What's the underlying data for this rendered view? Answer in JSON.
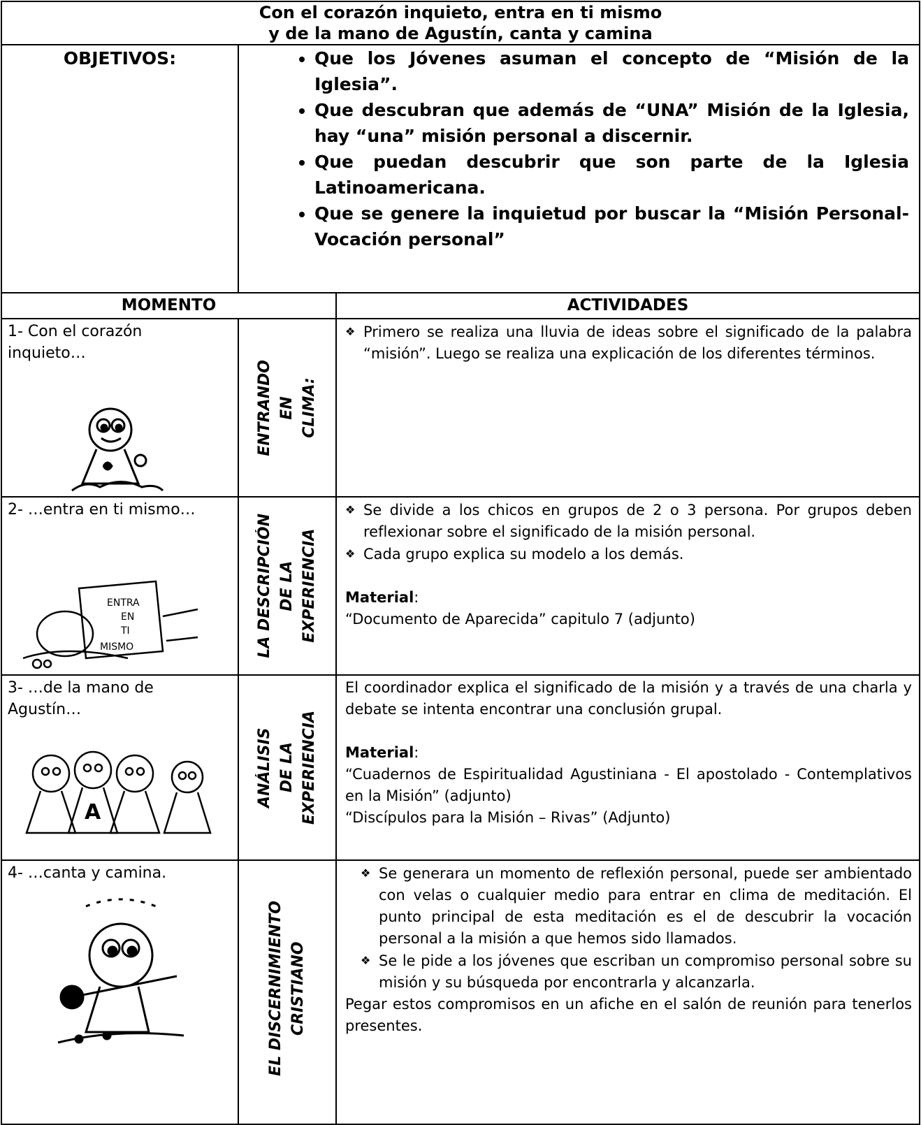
{
  "title": [
    "Con el corazón inquieto, entra en ti mismo",
    "y de la mano de Agustín, canta y camina"
  ],
  "objectives": {
    "label": "OBJETIVOS:",
    "items": [
      "Que los Jóvenes  asuman el concepto de “Misión de la Iglesia”.",
      "Que descubran que además de “UNA” Misión de la Iglesia, hay “una” misión personal a discernir.",
      "Que puedan descubrir que son parte de la Iglesia Latinoamericana.",
      "Que se genere la inquietud por buscar la “Misión Personal-Vocación personal”"
    ]
  },
  "header": {
    "moment": "MOMENTO",
    "activities": "ACTIVIDADES"
  },
  "rows": [
    {
      "moment": "1- Con el corazón inquieto…",
      "stage": [
        "ENTRANDO",
        "EN",
        "CLIMA:"
      ],
      "bullets": [
        "Primero se realiza una lluvia de ideas sobre el significado de la palabra “misión”. Luego se realiza una explicación de los diferentes términos."
      ]
    },
    {
      "moment": "2- …entra en ti mismo…",
      "stage": [
        "LA DESCRIPCIÓN",
        "DE LA",
        "EXPERIENCIA"
      ],
      "bullets": [
        "Se divide a los chicos en grupos de 2 o 3 persona. Por grupos deben reflexionar sobre el significado de la misión personal.",
        "Cada grupo explica su modelo a los demás."
      ],
      "material": {
        "label": "Material",
        "colon": ":",
        "items": [
          "“Documento de Aparecida” capitulo 7 (adjunto)"
        ]
      }
    },
    {
      "moment": "3- …de la mano de Agustín…",
      "stage": [
        "ANÁLISIS",
        "DE LA",
        "EXPERIENCIA"
      ],
      "text": "El coordinador explica el significado de la misión y a través de una charla y debate se intenta encontrar una conclusión grupal.",
      "material": {
        "label": "Material",
        "colon": ":",
        "items": [
          "“Cuadernos de Espiritualidad Agustiniana - El apostolado - Contemplativos en la Misión” (adjunto)",
          "“Discípulos para la Misión – Rivas” (Adjunto)"
        ]
      }
    },
    {
      "moment": "4- …canta y camina.",
      "stage": [
        "EL DISCERNIMIENTO",
        "CRISTIANO"
      ],
      "bullets": [
        "Se generara un momento de reflexión personal, puede ser ambientado con velas o cualquier medio para entrar en clima de meditación. El punto principal de esta meditación es el de descubrir la vocación personal a la misión a que hemos sido llamados.",
        "Se le pide a los jóvenes  que escriban un compromiso personal sobre su misión y su búsqueda por encontrarla y alcanzarla."
      ],
      "after": "Pegar estos compromisos en un afiche en el salón de reunión para tenerlos presentes."
    }
  ]
}
